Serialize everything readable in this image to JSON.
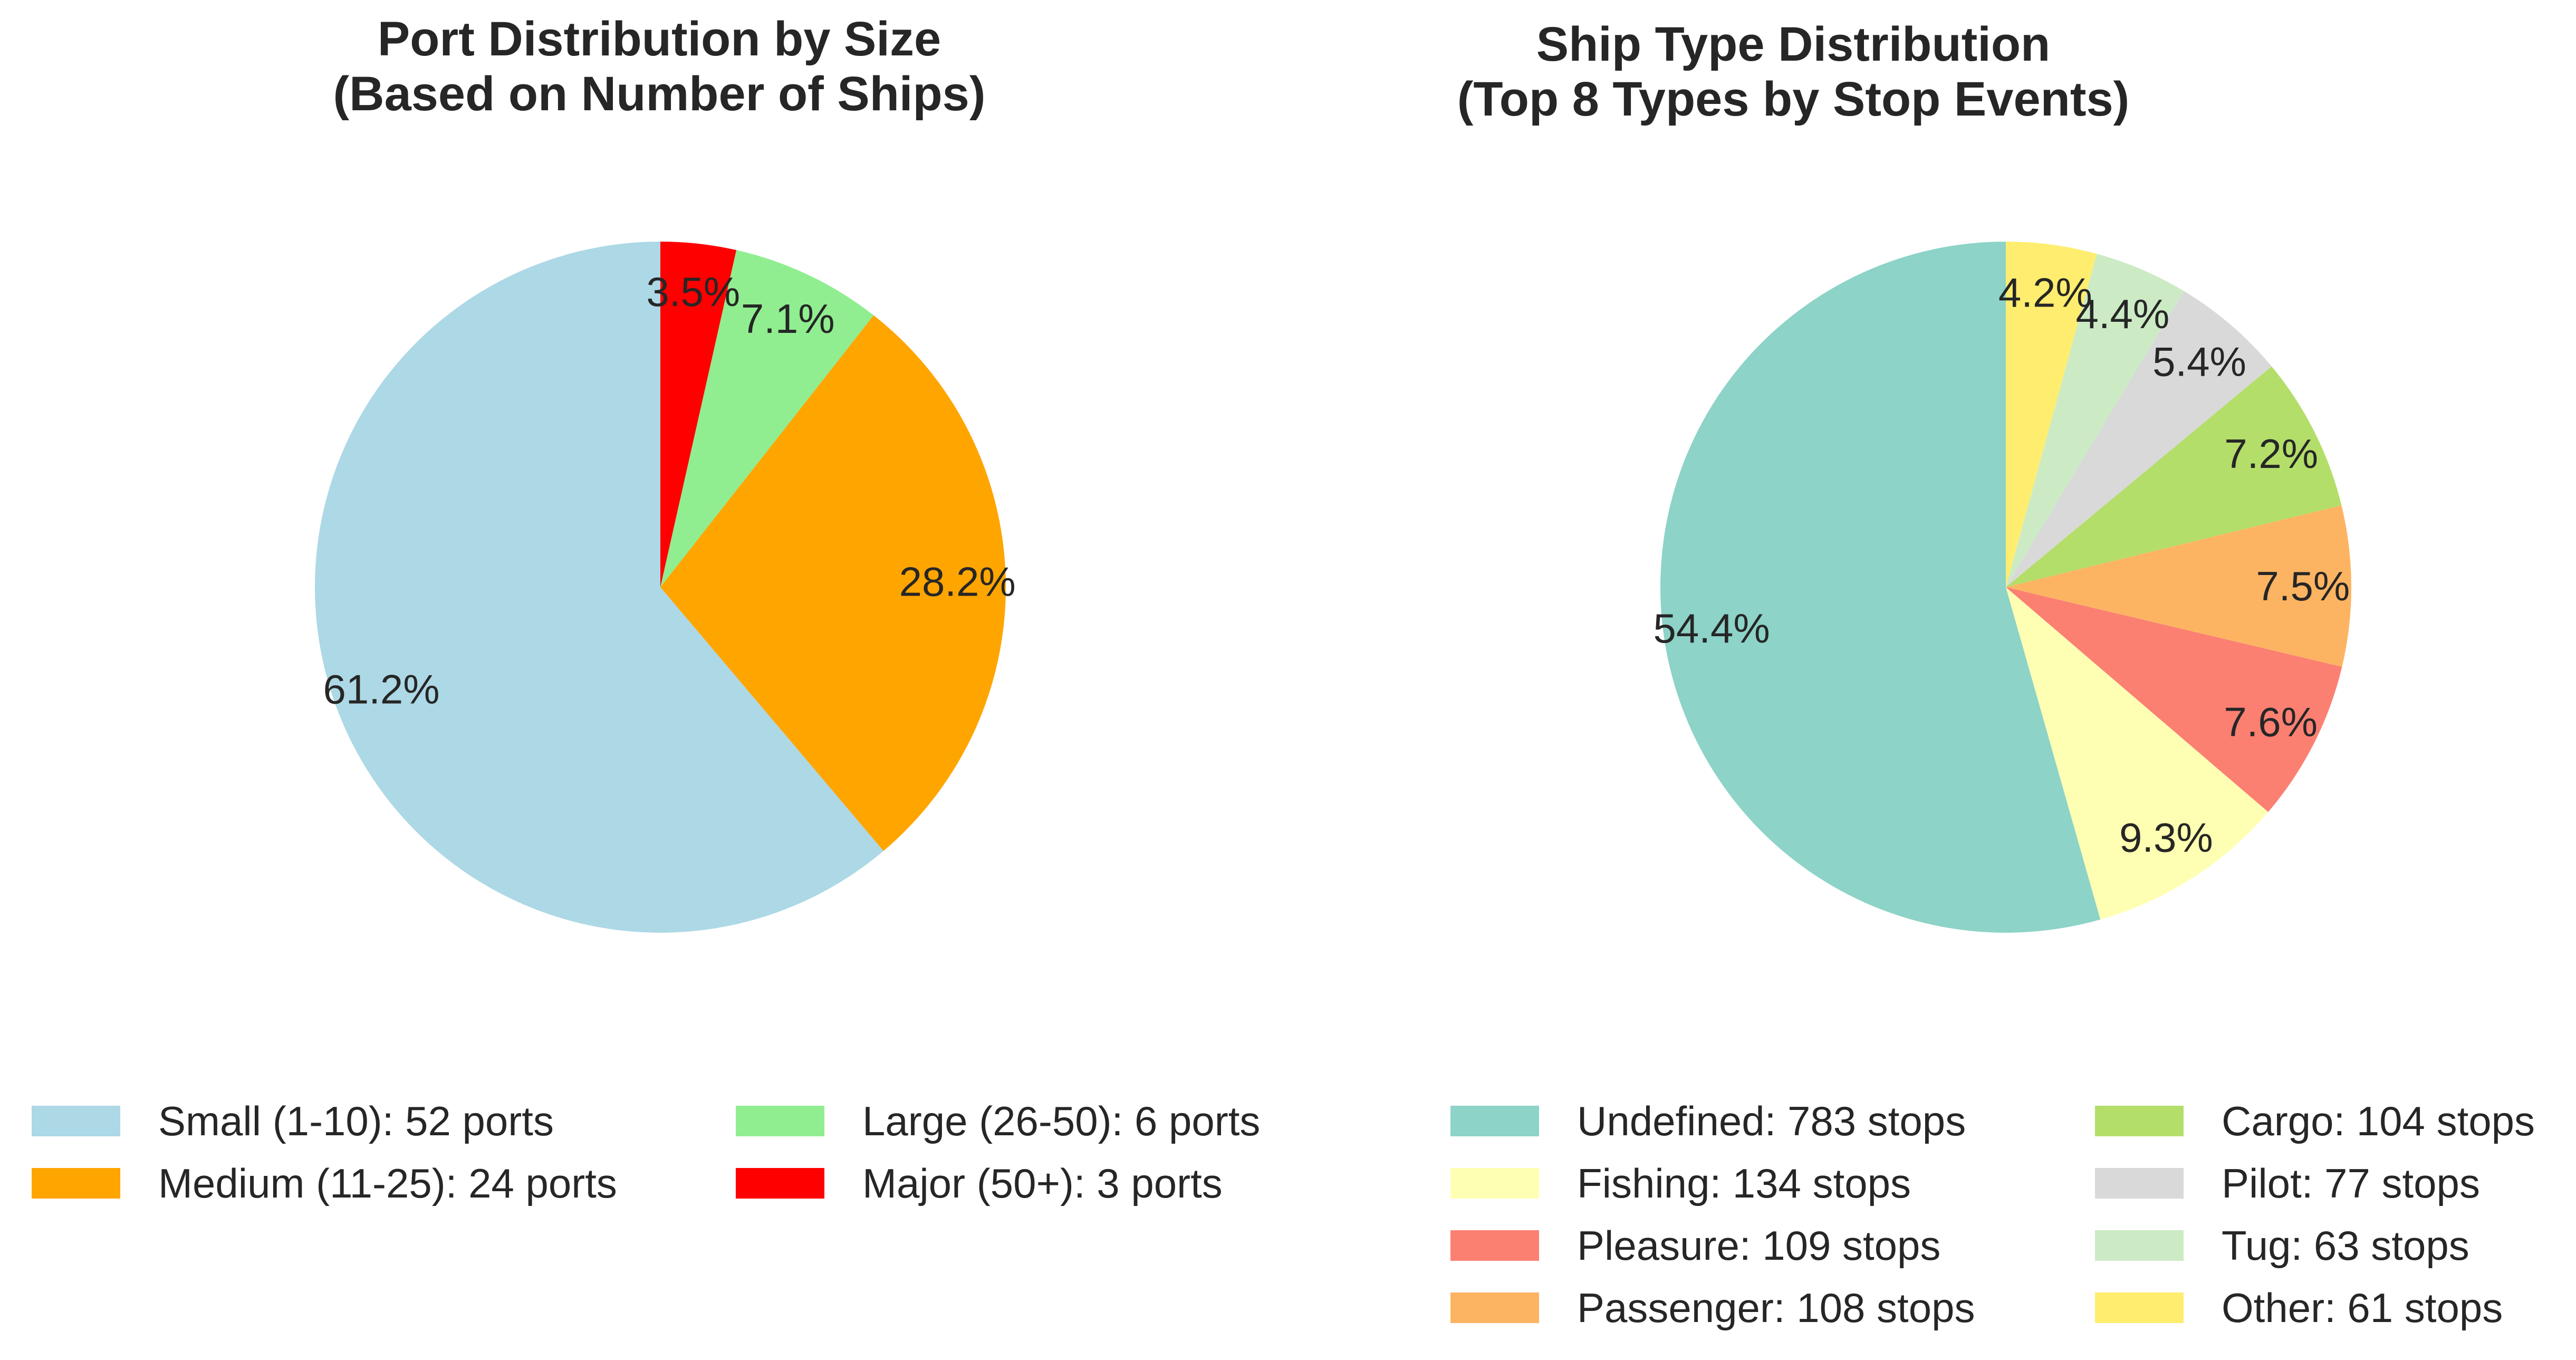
{
  "chart_data": [
    {
      "type": "pie",
      "title": "Port Distribution by Size\n(Based on Number of Ships)",
      "slices": [
        {
          "label": "Small (1-10): 52 ports",
          "value": 52,
          "pct_label": "61.2%",
          "color": "#add8e6"
        },
        {
          "label": "Medium (11-25): 24 ports",
          "value": 24,
          "pct_label": "28.2%",
          "color": "#ffa500"
        },
        {
          "label": "Large (26-50): 6 ports",
          "value": 6,
          "pct_label": "7.1%",
          "color": "#90ee90"
        },
        {
          "label": "Major (50+): 3 ports",
          "value": 3,
          "pct_label": "3.5%",
          "color": "#ff0000"
        }
      ],
      "start_angle_deg": 90,
      "direction": "counterclockwise",
      "legend_placement": "bottom",
      "legend_columns": 2
    },
    {
      "type": "pie",
      "title": "Ship Type Distribution\n(Top 8 Types by Stop Events)",
      "slices": [
        {
          "label": "Undefined: 783 stops",
          "value": 783,
          "pct_label": "54.4%",
          "color": "#8dd3c7"
        },
        {
          "label": "Fishing: 134 stops",
          "value": 134,
          "pct_label": "9.3%",
          "color": "#ffffb3"
        },
        {
          "label": "Pleasure: 109 stops",
          "value": 109,
          "pct_label": "7.6%",
          "color": "#fb8072"
        },
        {
          "label": "Passenger: 108 stops",
          "value": 108,
          "pct_label": "7.5%",
          "color": "#fdb462"
        },
        {
          "label": "Cargo: 104 stops",
          "value": 104,
          "pct_label": "7.2%",
          "color": "#b3de69"
        },
        {
          "label": "Pilot: 77 stops",
          "value": 77,
          "pct_label": "5.4%",
          "color": "#d9d9d9"
        },
        {
          "label": "Tug: 63 stops",
          "value": 63,
          "pct_label": "4.4%",
          "color": "#ccebc5"
        },
        {
          "label": "Other: 61 stops",
          "value": 61,
          "pct_label": "4.2%",
          "color": "#ffed6f"
        }
      ],
      "start_angle_deg": 90,
      "direction": "counterclockwise",
      "legend_placement": "bottom",
      "legend_columns": 2
    }
  ]
}
